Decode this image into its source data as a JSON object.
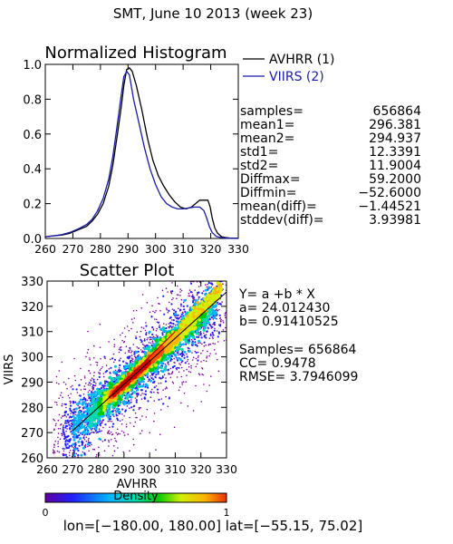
{
  "page_title": "SMT,  June 10 2013 (week 23)",
  "colors": {
    "avhrr": "#000000",
    "viirs": "#1a1aa6"
  },
  "stats": [
    {
      "key": "samples=",
      "value": "656864"
    },
    {
      "key": "mean1=",
      "value": "296.381"
    },
    {
      "key": "mean2=",
      "value": "294.937"
    },
    {
      "key": "std1=",
      "value": "12.3391"
    },
    {
      "key": "std2=",
      "value": "11.9004"
    },
    {
      "key": "Diffmax=",
      "value": "59.2000"
    },
    {
      "key": "Diffmin=",
      "value": "−52.6000"
    },
    {
      "key": "mean(diff)=",
      "value": "−1.44521"
    },
    {
      "key": "stddev(diff)=",
      "value": "3.93981"
    }
  ],
  "fit": {
    "equation": "Y= a +b * X",
    "a": "a= 24.012430",
    "b": "b= 0.91410525",
    "samples": "Samples= 656864",
    "cc": "CC=  0.9478",
    "rmse": "RMSE= 3.7946099"
  },
  "colorbar": {
    "label": "Density",
    "min": "0",
    "max": "1"
  },
  "range_text": "lon=[−180.00, 180.00] lat=[−55.15, 75.02]",
  "chart_data": [
    {
      "type": "line",
      "title": "Normalized Histogram",
      "xlim": [
        260,
        330
      ],
      "ylim": [
        0,
        1
      ],
      "xticks": [
        260,
        270,
        280,
        290,
        300,
        310,
        320,
        330
      ],
      "yticks": [
        0.0,
        0.2,
        0.4,
        0.6,
        0.8,
        1.0
      ],
      "xtick_labels": [
        "260",
        "270",
        "280",
        "290",
        "300",
        "310",
        "320",
        "330"
      ],
      "ytick_labels": [
        "0.0",
        "0.2",
        "0.4",
        "0.6",
        "0.8",
        "1.0"
      ],
      "legend_position": "top-right",
      "series": [
        {
          "name": "AVHRR (1)",
          "color": "#000000",
          "x": [
            260,
            263,
            266,
            269,
            272,
            275,
            277,
            279,
            281,
            283,
            284.5,
            286,
            287.5,
            288.5,
            289.5,
            290.5,
            291.5,
            293,
            295,
            297,
            299,
            301,
            303,
            305,
            307,
            309,
            311,
            313,
            314.5,
            316,
            317,
            318,
            319,
            319.8,
            320.5,
            321.5,
            322.5,
            324,
            325.5,
            327,
            330
          ],
          "y": [
            0.01,
            0.015,
            0.02,
            0.03,
            0.05,
            0.07,
            0.1,
            0.14,
            0.2,
            0.3,
            0.42,
            0.58,
            0.75,
            0.88,
            0.97,
            0.98,
            0.96,
            0.88,
            0.74,
            0.58,
            0.45,
            0.36,
            0.3,
            0.25,
            0.21,
            0.18,
            0.17,
            0.18,
            0.2,
            0.22,
            0.22,
            0.22,
            0.22,
            0.18,
            0.12,
            0.06,
            0.03,
            0.01,
            0.005,
            0.002,
            0.001
          ]
        },
        {
          "name": "VIIRS (2)",
          "color": "#1a1aa6",
          "x": [
            260,
            263,
            266,
            269,
            272,
            275,
            277,
            279,
            281,
            283,
            284.5,
            286,
            287.5,
            288.5,
            289.5,
            290.5,
            292,
            294,
            296,
            298,
            300,
            302,
            304,
            306,
            308,
            310,
            312,
            314,
            316,
            317.5,
            318.5,
            319.5,
            320.5,
            322,
            324,
            327,
            330
          ],
          "y": [
            0.01,
            0.015,
            0.022,
            0.035,
            0.055,
            0.08,
            0.11,
            0.16,
            0.23,
            0.34,
            0.47,
            0.64,
            0.82,
            0.93,
            0.96,
            0.94,
            0.8,
            0.66,
            0.52,
            0.4,
            0.31,
            0.24,
            0.2,
            0.18,
            0.17,
            0.17,
            0.175,
            0.18,
            0.18,
            0.16,
            0.12,
            0.07,
            0.035,
            0.012,
            0.004,
            0.001,
            0.0
          ]
        }
      ]
    },
    {
      "type": "scatter",
      "title": "Scatter Plot",
      "xlabel": "AVHRR",
      "ylabel": "VIIRS",
      "xlim": [
        260,
        330
      ],
      "ylim": [
        260,
        330
      ],
      "xticks": [
        260,
        270,
        280,
        290,
        300,
        310,
        320,
        330
      ],
      "yticks": [
        260,
        270,
        280,
        290,
        300,
        310,
        320,
        330
      ],
      "xtick_labels": [
        "260",
        "270",
        "280",
        "290",
        "300",
        "310",
        "320",
        "330"
      ],
      "ytick_labels": [
        "260",
        "270",
        "280",
        "290",
        "300",
        "310",
        "320",
        "330"
      ],
      "fit_line": {
        "a": 24.01243,
        "b": 0.91410525
      },
      "density_colormap": [
        "#ffffff",
        "#8000a0",
        "#2020ff",
        "#00b4ff",
        "#00dcaa",
        "#00c800",
        "#d2f000",
        "#ffb400",
        "#ff5000",
        "#d20000"
      ]
    }
  ]
}
